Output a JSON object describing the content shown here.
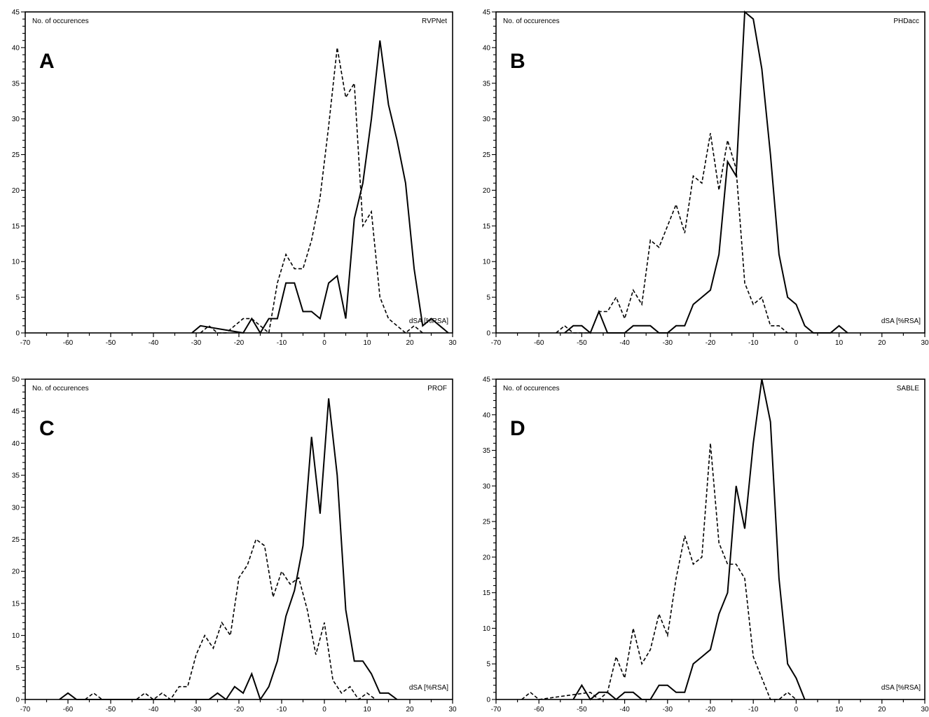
{
  "chart_data": [
    {
      "type": "line",
      "panel_label": "A",
      "method": "RVPNet",
      "ylabel": "No. of occurences",
      "xlabel": "dSA [%RSA]",
      "xlim": [
        -70,
        30
      ],
      "ylim": [
        0,
        45
      ],
      "xticks": [
        -70,
        -60,
        -50,
        -40,
        -30,
        -20,
        -10,
        0,
        10,
        20,
        30
      ],
      "yticks": [
        0,
        5,
        10,
        15,
        20,
        25,
        30,
        35,
        40,
        45
      ],
      "series": [
        {
          "style": "solid",
          "x": [
            -31,
            -29,
            -19,
            -17,
            -15,
            -13,
            -11,
            -9,
            -7,
            -5,
            -3,
            -1,
            1,
            3,
            5,
            7,
            9,
            11,
            13,
            15,
            17,
            19,
            21,
            23,
            25,
            27,
            29
          ],
          "y": [
            0,
            1,
            0,
            2,
            0,
            2,
            2,
            7,
            7,
            3,
            3,
            2,
            7,
            8,
            2,
            16,
            21,
            30,
            41,
            32,
            27,
            21,
            9,
            1,
            2,
            1,
            0
          ]
        },
        {
          "style": "dashed",
          "x": [
            -29,
            -27,
            -25,
            -23,
            -21,
            -19,
            -17,
            -15,
            -13,
            -11,
            -9,
            -7,
            -5,
            -3,
            -1,
            1,
            3,
            5,
            7,
            9,
            11,
            13,
            15,
            17,
            19,
            21,
            23
          ],
          "y": [
            0,
            1,
            0,
            0,
            1,
            2,
            2,
            1,
            0,
            7,
            11,
            9,
            9,
            13,
            19,
            29,
            40,
            33,
            35,
            15,
            17,
            5,
            2,
            1,
            0,
            1,
            0
          ]
        }
      ]
    },
    {
      "type": "line",
      "panel_label": "B",
      "method": "PHDacc",
      "ylabel": "No. of occurences",
      "xlabel": "dSA [%RSA]",
      "xlim": [
        -70,
        30
      ],
      "ylim": [
        0,
        45
      ],
      "xticks": [
        -70,
        -60,
        -50,
        -40,
        -30,
        -20,
        -10,
        0,
        10,
        20,
        30
      ],
      "yticks": [
        0,
        5,
        10,
        15,
        20,
        25,
        30,
        35,
        40,
        45
      ],
      "series": [
        {
          "style": "solid",
          "x": [
            -54,
            -52,
            -50,
            -48,
            -46,
            -44,
            -42,
            -40,
            -38,
            -36,
            -34,
            -32,
            -30,
            -28,
            -26,
            -24,
            -22,
            -20,
            -18,
            -16,
            -14,
            -12,
            -10,
            -8,
            -6,
            -4,
            -2,
            0,
            2,
            4,
            6,
            8,
            10,
            12
          ],
          "y": [
            0,
            1,
            1,
            0,
            3,
            0,
            0,
            0,
            1,
            1,
            1,
            0,
            0,
            1,
            1,
            4,
            5,
            6,
            11,
            24,
            22,
            45,
            44,
            37,
            25,
            11,
            5,
            4,
            1,
            0,
            0,
            0,
            1,
            0
          ]
        },
        {
          "style": "dashed",
          "x": [
            -56,
            -54,
            -52,
            -50,
            -48,
            -46,
            -44,
            -42,
            -40,
            -38,
            -36,
            -34,
            -32,
            -30,
            -28,
            -26,
            -24,
            -22,
            -20,
            -18,
            -16,
            -14,
            -12,
            -10,
            -8,
            -6,
            -4,
            -2
          ],
          "y": [
            0,
            1,
            0,
            0,
            0,
            3,
            3,
            5,
            2,
            6,
            4,
            13,
            12,
            15,
            18,
            14,
            22,
            21,
            28,
            20,
            27,
            23,
            7,
            4,
            5,
            1,
            1,
            0
          ]
        }
      ]
    },
    {
      "type": "line",
      "panel_label": "C",
      "method": "PROF",
      "ylabel": "No. of occurences",
      "xlabel": "dSA [%RSA]",
      "xlim": [
        -70,
        30
      ],
      "ylim": [
        0,
        50
      ],
      "xticks": [
        -70,
        -60,
        -50,
        -40,
        -30,
        -20,
        -10,
        0,
        10,
        20,
        30
      ],
      "yticks": [
        0,
        5,
        10,
        15,
        20,
        25,
        30,
        35,
        40,
        45,
        50
      ],
      "series": [
        {
          "style": "solid",
          "x": [
            -62,
            -60,
            -58,
            -27,
            -25,
            -23,
            -21,
            -19,
            -17,
            -15,
            -13,
            -11,
            -9,
            -7,
            -5,
            -3,
            -1,
            1,
            3,
            5,
            7,
            9,
            11,
            13,
            15,
            17
          ],
          "y": [
            0,
            1,
            0,
            0,
            1,
            0,
            2,
            1,
            4,
            0,
            2,
            6,
            13,
            17,
            24,
            41,
            29,
            47,
            35,
            14,
            6,
            6,
            4,
            1,
            1,
            0
          ]
        },
        {
          "style": "dashed",
          "x": [
            -56,
            -54,
            -52,
            -44,
            -42,
            -40,
            -38,
            -36,
            -34,
            -32,
            -30,
            -28,
            -26,
            -24,
            -22,
            -20,
            -18,
            -16,
            -14,
            -12,
            -10,
            -8,
            -6,
            -4,
            -2,
            0,
            2,
            4,
            6,
            8,
            10,
            12
          ],
          "y": [
            0,
            1,
            0,
            0,
            1,
            0,
            1,
            0,
            2,
            2,
            7,
            10,
            8,
            12,
            10,
            19,
            21,
            25,
            24,
            16,
            20,
            18,
            19,
            14,
            7,
            12,
            3,
            1,
            2,
            0,
            1,
            0
          ]
        }
      ]
    },
    {
      "type": "line",
      "panel_label": "D",
      "method": "SABLE",
      "ylabel": "No. of occurences",
      "xlabel": "dSA [%RSA]",
      "xlim": [
        -70,
        30
      ],
      "ylim": [
        0,
        45
      ],
      "xticks": [
        -70,
        -60,
        -50,
        -40,
        -30,
        -20,
        -10,
        0,
        10,
        20,
        30
      ],
      "yticks": [
        0,
        5,
        10,
        15,
        20,
        25,
        30,
        35,
        40,
        45
      ],
      "series": [
        {
          "style": "solid",
          "x": [
            -52,
            -50,
            -48,
            -46,
            -44,
            -42,
            -40,
            -38,
            -36,
            -34,
            -32,
            -30,
            -28,
            -26,
            -24,
            -22,
            -20,
            -18,
            -16,
            -14,
            -12,
            -10,
            -8,
            -6,
            -4,
            -2,
            0,
            2
          ],
          "y": [
            0,
            2,
            0,
            1,
            1,
            0,
            1,
            1,
            0,
            0,
            2,
            2,
            1,
            1,
            5,
            6,
            7,
            12,
            15,
            30,
            24,
            36,
            45,
            39,
            17,
            5,
            3,
            0
          ]
        },
        {
          "style": "dashed",
          "x": [
            -64,
            -62,
            -60,
            -48,
            -46,
            -44,
            -42,
            -40,
            -38,
            -36,
            -34,
            -32,
            -30,
            -28,
            -26,
            -24,
            -22,
            -20,
            -18,
            -16,
            -14,
            -12,
            -10,
            -8,
            -6,
            -4,
            -2,
            0
          ],
          "y": [
            0,
            1,
            0,
            1,
            0,
            1,
            6,
            3,
            10,
            5,
            7,
            12,
            9,
            17,
            23,
            19,
            20,
            36,
            22,
            19,
            19,
            17,
            6,
            3,
            0,
            0,
            1,
            0
          ]
        }
      ]
    }
  ]
}
